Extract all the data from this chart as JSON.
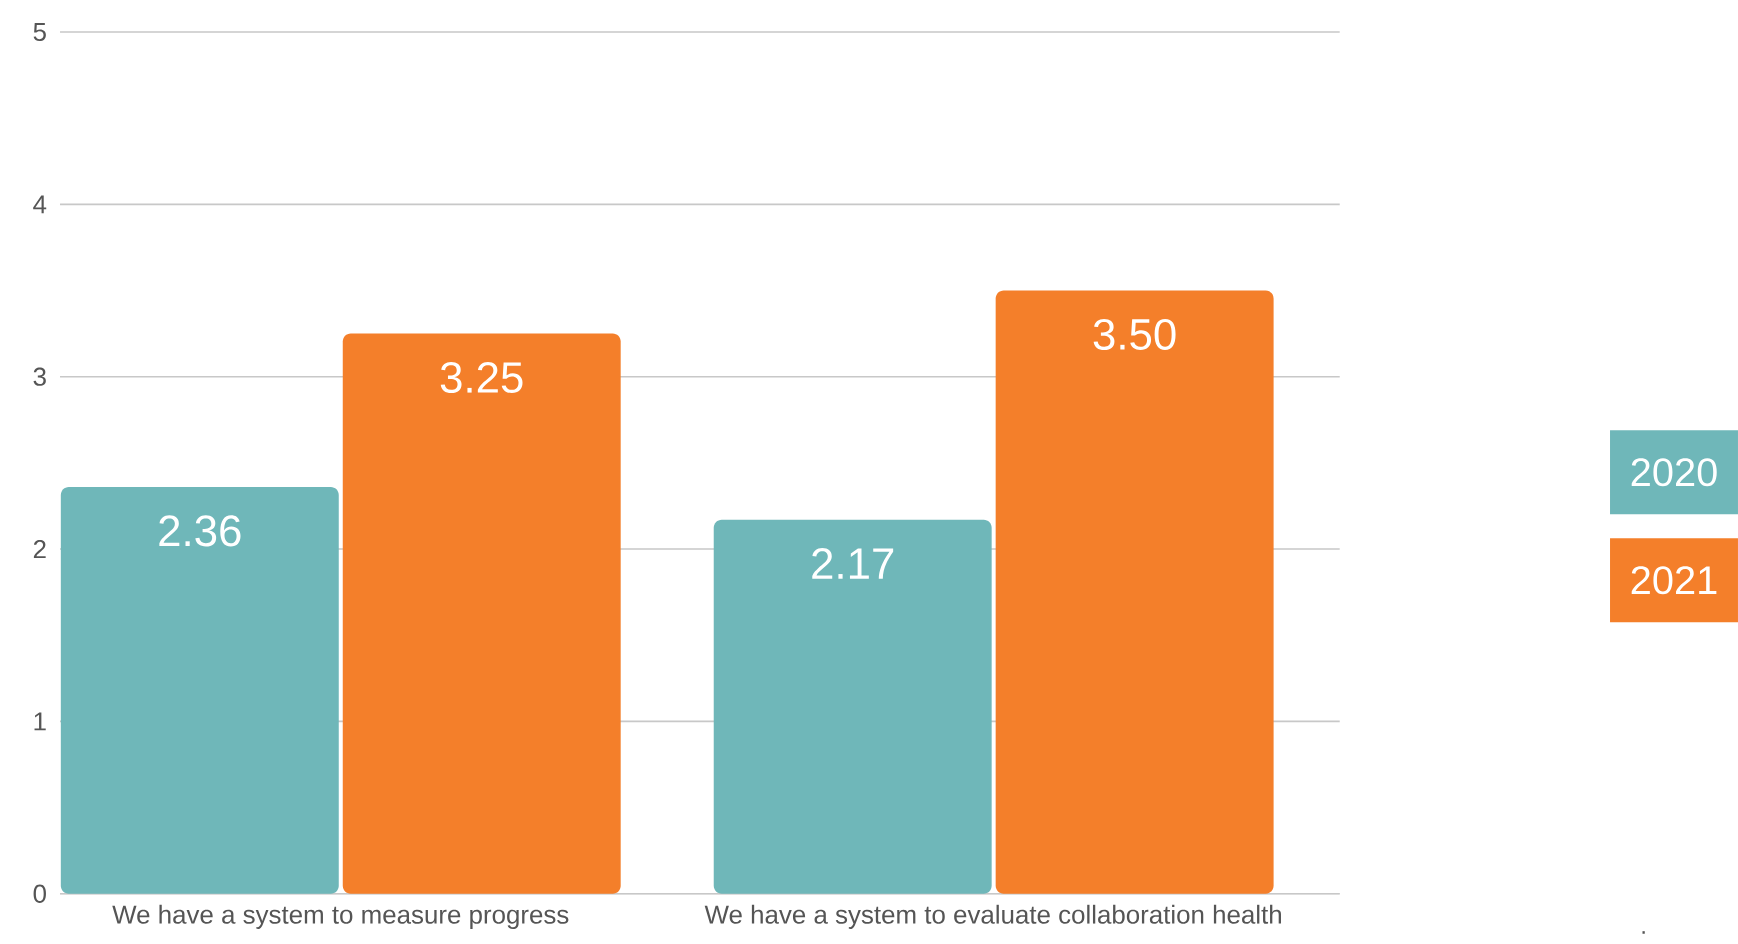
{
  "chart_data": {
    "type": "bar",
    "categories": [
      "We have a system to measure progress",
      "We have a system to evaluate collaboration health"
    ],
    "series": [
      {
        "name": "2020",
        "color": "#6fb7b9",
        "values": [
          2.36,
          2.17
        ],
        "value_labels": [
          "2.36",
          "2.17"
        ]
      },
      {
        "name": "2021",
        "color": "#f47f2a",
        "values": [
          3.25,
          3.5
        ],
        "value_labels": [
          "3.25",
          "3.50"
        ]
      }
    ],
    "ylim": [
      0,
      5
    ],
    "yticks": [
      0,
      1,
      2,
      3,
      4,
      5
    ],
    "grid": "y",
    "legend": "right",
    "annotations": [
      "."
    ]
  }
}
